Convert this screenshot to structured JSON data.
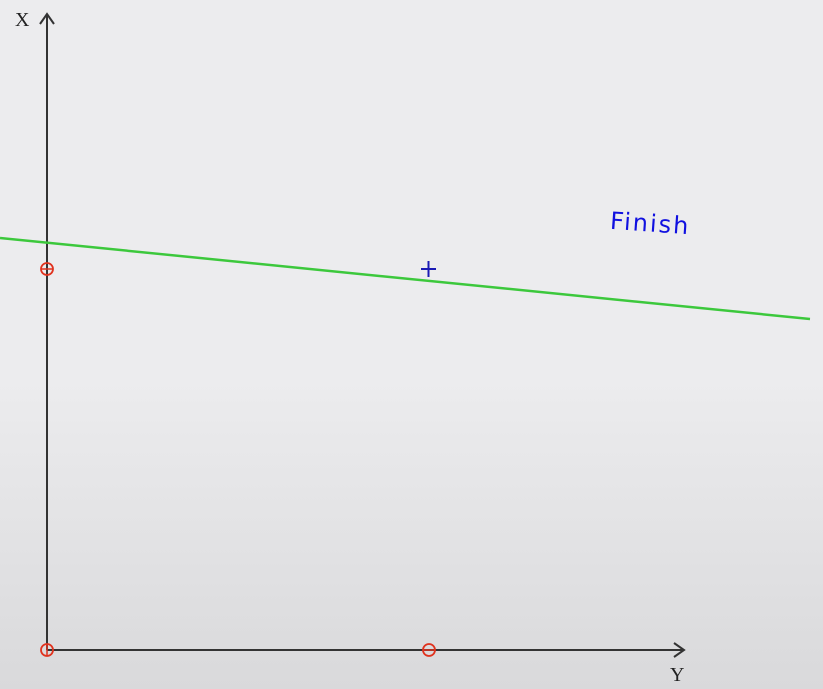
{
  "axes": {
    "x_label": "X",
    "y_label": "Y",
    "color": "#333333"
  },
  "annotation": {
    "text": "Finish",
    "color": "#1010e0"
  },
  "points": [
    {
      "name": "origin",
      "marker": "circle",
      "color": "#e0321e"
    },
    {
      "name": "point-on-x-axis",
      "marker": "circle",
      "color": "#e0321e"
    },
    {
      "name": "point-on-y-axis",
      "marker": "circle",
      "color": "#e0321e"
    },
    {
      "name": "plus-point",
      "marker": "plus",
      "color": "#1a1ab4"
    }
  ],
  "line": {
    "name": "fitted-line",
    "color": "#3cc83c"
  }
}
